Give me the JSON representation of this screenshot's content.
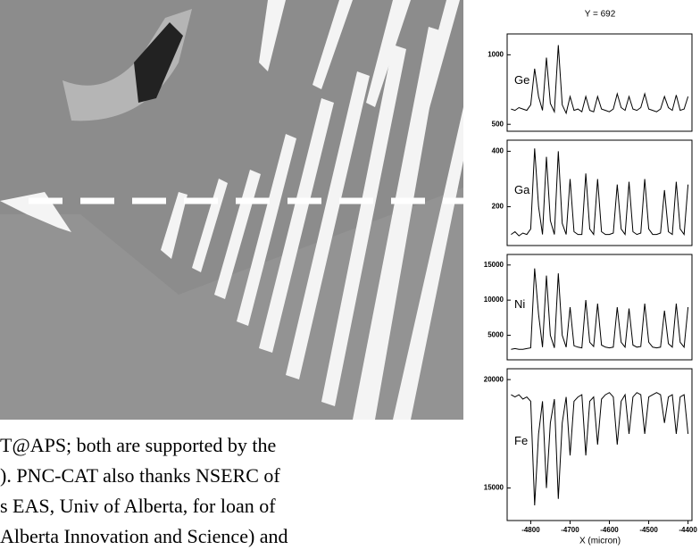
{
  "document": {
    "text_lines": [
      "T@APS; both are supported by the",
      "). PNC-CAT also thanks NSERC of",
      "s EAS, Univ of Alberta, for loan of",
      "Alberta Innovation and Science) and"
    ]
  },
  "chart_data": [
    {
      "type": "line",
      "title": "Y = 692",
      "x": [
        -4850,
        -4840,
        -4830,
        -4820,
        -4810,
        -4800,
        -4790,
        -4780,
        -4770,
        -4760,
        -4750,
        -4740,
        -4730,
        -4720,
        -4710,
        -4700,
        -4690,
        -4680,
        -4670,
        -4660,
        -4650,
        -4640,
        -4630,
        -4620,
        -4610,
        -4600,
        -4590,
        -4580,
        -4570,
        -4560,
        -4550,
        -4540,
        -4530,
        -4520,
        -4510,
        -4500,
        -4490,
        -4480,
        -4470,
        -4460,
        -4450,
        -4440,
        -4430,
        -4420,
        -4410,
        -4400
      ],
      "series": [
        {
          "name": "Ge",
          "color": "#000000",
          "values": [
            610,
            600,
            620,
            610,
            600,
            640,
            900,
            700,
            600,
            980,
            650,
            590,
            1070,
            640,
            580,
            700,
            600,
            610,
            590,
            700,
            600,
            590,
            700,
            610,
            600,
            590,
            610,
            720,
            620,
            600,
            700,
            610,
            600,
            620,
            720,
            610,
            600,
            590,
            610,
            700,
            620,
            600,
            710,
            600,
            610,
            700
          ]
        }
      ],
      "ylim": [
        450,
        1150
      ],
      "yticks": [
        500,
        1000
      ]
    },
    {
      "type": "line",
      "x": [
        -4850,
        -4840,
        -4830,
        -4820,
        -4810,
        -4800,
        -4790,
        -4780,
        -4770,
        -4760,
        -4750,
        -4740,
        -4730,
        -4720,
        -4710,
        -4700,
        -4690,
        -4680,
        -4670,
        -4660,
        -4650,
        -4640,
        -4630,
        -4620,
        -4610,
        -4600,
        -4590,
        -4580,
        -4570,
        -4560,
        -4550,
        -4540,
        -4530,
        -4520,
        -4510,
        -4500,
        -4490,
        -4480,
        -4470,
        -4460,
        -4450,
        -4440,
        -4430,
        -4420,
        -4410,
        -4400
      ],
      "series": [
        {
          "name": "Ga",
          "color": "#000000",
          "values": [
            100,
            110,
            95,
            105,
            100,
            120,
            410,
            200,
            100,
            380,
            150,
            100,
            400,
            140,
            100,
            300,
            110,
            100,
            100,
            320,
            120,
            100,
            300,
            110,
            100,
            100,
            105,
            280,
            120,
            100,
            290,
            110,
            100,
            105,
            300,
            120,
            100,
            100,
            105,
            260,
            110,
            100,
            290,
            120,
            100,
            280
          ]
        }
      ],
      "ylim": [
        60,
        440
      ],
      "yticks": [
        200,
        400
      ]
    },
    {
      "type": "line",
      "x": [
        -4850,
        -4840,
        -4830,
        -4820,
        -4810,
        -4800,
        -4790,
        -4780,
        -4770,
        -4760,
        -4750,
        -4740,
        -4730,
        -4720,
        -4710,
        -4700,
        -4690,
        -4680,
        -4670,
        -4660,
        -4650,
        -4640,
        -4630,
        -4620,
        -4610,
        -4600,
        -4590,
        -4580,
        -4570,
        -4560,
        -4550,
        -4540,
        -4530,
        -4520,
        -4510,
        -4500,
        -4490,
        -4480,
        -4470,
        -4460,
        -4450,
        -4440,
        -4430,
        -4420,
        -4410,
        -4400
      ],
      "series": [
        {
          "name": "Ni",
          "color": "#000000",
          "values": [
            3000,
            3100,
            3000,
            3000,
            3100,
            3200,
            14500,
            8000,
            3300,
            13500,
            5000,
            3200,
            13800,
            5000,
            3300,
            9000,
            3500,
            3300,
            3200,
            10000,
            4000,
            3400,
            9500,
            3600,
            3300,
            3200,
            3300,
            9000,
            4000,
            3300,
            8800,
            3600,
            3300,
            3400,
            9500,
            4000,
            3300,
            3200,
            3300,
            8500,
            3800,
            3300,
            9500,
            4000,
            3300,
            9000
          ]
        }
      ],
      "ylim": [
        1500,
        16500
      ],
      "yticks": [
        5000,
        10000,
        15000
      ]
    },
    {
      "type": "line",
      "x_label": "X (micron)",
      "x": [
        -4850,
        -4840,
        -4830,
        -4820,
        -4810,
        -4800,
        -4790,
        -4780,
        -4770,
        -4760,
        -4750,
        -4740,
        -4730,
        -4720,
        -4710,
        -4700,
        -4690,
        -4680,
        -4670,
        -4660,
        -4650,
        -4640,
        -4630,
        -4620,
        -4610,
        -4600,
        -4590,
        -4580,
        -4570,
        -4560,
        -4550,
        -4540,
        -4530,
        -4520,
        -4510,
        -4500,
        -4490,
        -4480,
        -4470,
        -4460,
        -4450,
        -4440,
        -4430,
        -4420,
        -4410,
        -4400
      ],
      "series": [
        {
          "name": "Fe",
          "color": "#000000",
          "values": [
            19300,
            19200,
            19300,
            19100,
            19200,
            19000,
            14200,
            17500,
            19000,
            15000,
            18000,
            19100,
            14500,
            18000,
            19200,
            16500,
            19000,
            19200,
            19300,
            16500,
            19000,
            19200,
            17000,
            19100,
            19300,
            19400,
            19200,
            17000,
            19000,
            19300,
            17500,
            19200,
            19400,
            19300,
            17500,
            19200,
            19300,
            19400,
            19300,
            18000,
            19200,
            19300,
            17500,
            19200,
            19300,
            17500
          ]
        }
      ],
      "ylim": [
        13500,
        20500
      ],
      "yticks": [
        15000,
        20000
      ],
      "xlim": [
        -4860,
        -4390
      ],
      "xticks": [
        -4800,
        -4700,
        -4600,
        -4500,
        -4400
      ]
    }
  ]
}
